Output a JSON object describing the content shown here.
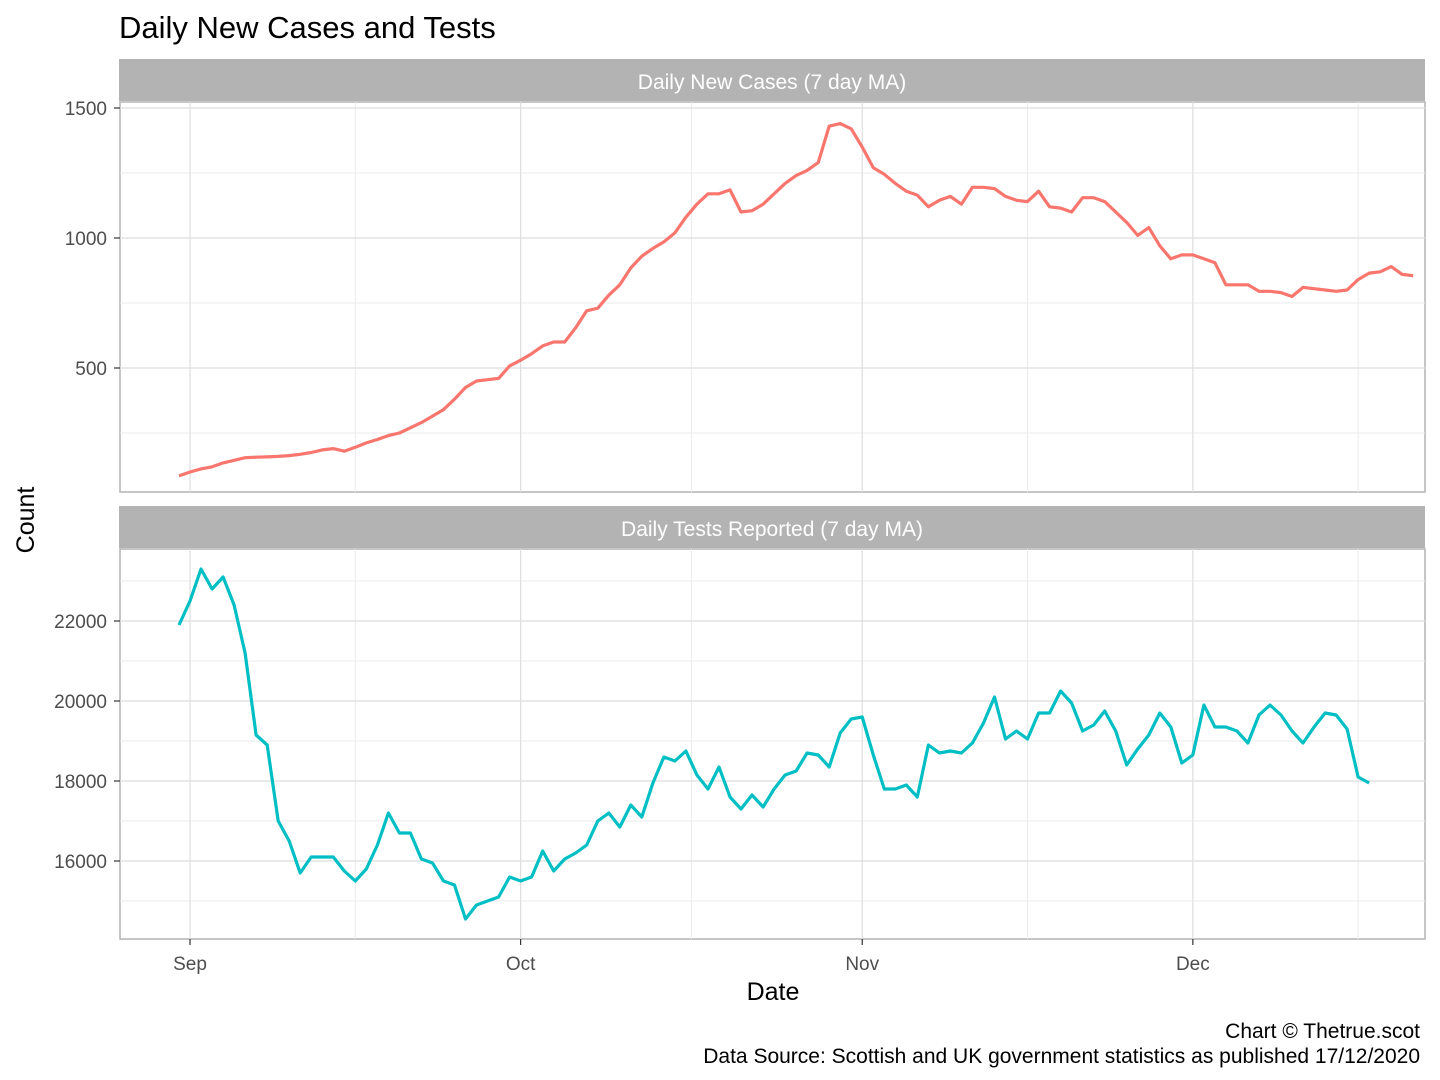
{
  "chart_data": {
    "type": "line",
    "title": "Daily New Cases and Tests",
    "xlabel": "Date",
    "ylabel": "Count",
    "x_start_date": "2020-08-31",
    "x_tick_labels": [
      "Sep",
      "Oct",
      "Nov",
      "Dec"
    ],
    "x_tick_dates": [
      "2020-09-01",
      "2020-10-01",
      "2020-11-01",
      "2020-12-01"
    ],
    "grid": true,
    "legend": "none",
    "caption_lines": [
      "Chart © Thetrue.scot",
      "Data Source: Scottish and UK government statistics as published 17/12/2020"
    ],
    "panels": [
      {
        "strip_label": "Daily New Cases (7 day MA)",
        "color": "#F8766D",
        "ylim": [
          0,
          1500
        ],
        "y_major_ticks": [
          500,
          1000,
          1500
        ],
        "y_minor_ticks": [
          250,
          750,
          1250
        ],
        "values": [
          85,
          100,
          112,
          120,
          135,
          145,
          155,
          157,
          158,
          160,
          163,
          168,
          175,
          185,
          190,
          180,
          195,
          212,
          225,
          240,
          250,
          270,
          290,
          315,
          340,
          380,
          425,
          450,
          455,
          460,
          508,
          530,
          555,
          585,
          600,
          600,
          655,
          720,
          730,
          780,
          820,
          885,
          930,
          960,
          985,
          1020,
          1080,
          1130,
          1170,
          1170,
          1185,
          1100,
          1105,
          1130,
          1170,
          1210,
          1240,
          1260,
          1290,
          1430,
          1440,
          1420,
          1350,
          1270,
          1245,
          1210,
          1180,
          1165,
          1120,
          1145,
          1160,
          1130,
          1195,
          1195,
          1190,
          1160,
          1145,
          1140,
          1180,
          1120,
          1115,
          1100,
          1155,
          1155,
          1140,
          1100,
          1060,
          1010,
          1040,
          970,
          920,
          935,
          935,
          920,
          905,
          820,
          820,
          820,
          795,
          795,
          790,
          775,
          810,
          805,
          800,
          795,
          800,
          840,
          865,
          870,
          890,
          860,
          855
        ]
      },
      {
        "strip_label": "Daily Tests Reported (7 day MA)",
        "color": "#00BFC4",
        "ylim": [
          14500,
          24000
        ],
        "y_major_ticks": [
          16000,
          18000,
          20000,
          22000
        ],
        "y_minor_ticks": [
          15000,
          17000,
          19000,
          21000,
          23000
        ],
        "values": [
          21900,
          22500,
          23300,
          22800,
          23100,
          22400,
          21200,
          19150,
          18900,
          17000,
          16500,
          15700,
          16100,
          16100,
          16100,
          15750,
          15500,
          15800,
          16400,
          17200,
          16700,
          16700,
          16050,
          15950,
          15500,
          15400,
          14550,
          14900,
          15000,
          15100,
          15600,
          15500,
          15600,
          16250,
          15750,
          16050,
          16200,
          16400,
          17000,
          17200,
          16850,
          17400,
          17100,
          17950,
          18600,
          18500,
          18750,
          18150,
          17800,
          18350,
          17600,
          17300,
          17650,
          17350,
          17800,
          18150,
          18250,
          18700,
          18650,
          18350,
          19200,
          19550,
          19600,
          18650,
          17800,
          17800,
          17900,
          17600,
          18900,
          18700,
          18750,
          18700,
          18950,
          19450,
          20100,
          19050,
          19250,
          19050,
          19700,
          19700,
          20250,
          19950,
          19250,
          19400,
          19750,
          19250,
          18400,
          18800,
          19150,
          19700,
          19350,
          18450,
          18650,
          19900,
          19350,
          19350,
          19250,
          18950,
          19650,
          19900,
          19650,
          19250,
          18950,
          19350,
          19700,
          19650,
          19300,
          18100,
          17950
        ]
      }
    ]
  }
}
